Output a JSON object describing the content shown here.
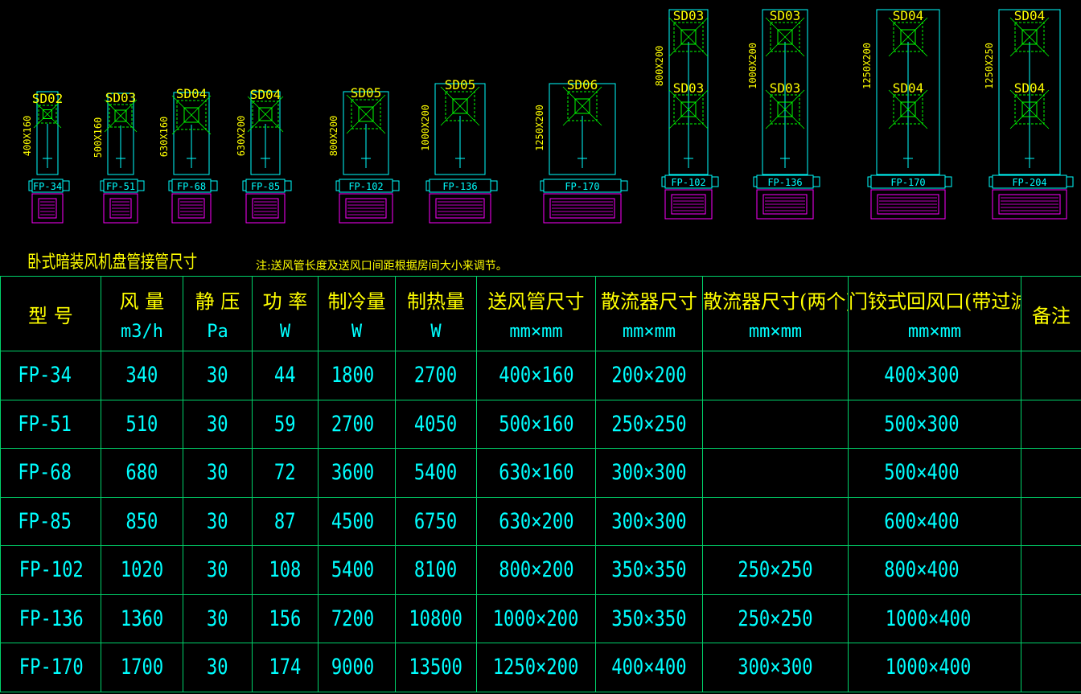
{
  "drawing": {
    "colors": {
      "outline": "#00ffff",
      "diffuser": "#00ff00",
      "grille": "#ff00ff",
      "label": "#ffff00"
    },
    "units": [
      {
        "model": "FP-34",
        "duct": "400X160",
        "diffusers": [
          "SD02"
        ]
      },
      {
        "model": "FP-51",
        "duct": "500X160",
        "diffusers": [
          "SD03"
        ]
      },
      {
        "model": "FP-68",
        "duct": "630X160",
        "diffusers": [
          "SD04"
        ]
      },
      {
        "model": "FP-85",
        "duct": "630X200",
        "diffusers": [
          "SD04"
        ]
      },
      {
        "model": "FP-102",
        "duct": "800X200",
        "diffusers": [
          "SD05"
        ]
      },
      {
        "model": "FP-136",
        "duct": "1000X200",
        "diffusers": [
          "SD05"
        ]
      },
      {
        "model": "FP-170",
        "duct": "1250X200",
        "diffusers": [
          "SD06"
        ]
      },
      {
        "model": "FP-102",
        "duct": "800X200",
        "diffusers": [
          "SD03",
          "SD03"
        ]
      },
      {
        "model": "FP-136",
        "duct": "1000X200",
        "diffusers": [
          "SD03",
          "SD03"
        ]
      },
      {
        "model": "FP-170",
        "duct": "1250X200",
        "diffusers": [
          "SD04",
          "SD04"
        ]
      },
      {
        "model": "FP-204",
        "duct": "1250X250",
        "diffusers": [
          "SD04",
          "SD04"
        ]
      }
    ]
  },
  "title": "卧式暗装风机盘管接管尺寸",
  "note": "注:送风管长度及送风口间距根据房间大小来调节。",
  "table": {
    "headers": [
      {
        "label": "型  号",
        "unit": ""
      },
      {
        "label": "风 量",
        "unit": "m3/h"
      },
      {
        "label": "静 压",
        "unit": "Pa"
      },
      {
        "label": "功 率",
        "unit": "W"
      },
      {
        "label": "制冷量",
        "unit": "W"
      },
      {
        "label": "制热量",
        "unit": "W"
      },
      {
        "label": "送风管尺寸",
        "unit": "mm×mm"
      },
      {
        "label": "散流器尺寸",
        "unit": "mm×mm"
      },
      {
        "label": "散流器尺寸(两个)",
        "unit": "mm×mm"
      },
      {
        "label": "门铰式回风口(带过滤网)",
        "unit": "mm×mm"
      },
      {
        "label": "备注",
        "unit": ""
      }
    ],
    "rows": [
      [
        "FP-34",
        "340",
        "30",
        "44",
        "1800",
        "2700",
        "400×160",
        "200×200",
        "",
        "400×300",
        ""
      ],
      [
        "FP-51",
        "510",
        "30",
        "59",
        "2700",
        "4050",
        "500×160",
        "250×250",
        "",
        "500×300",
        ""
      ],
      [
        "FP-68",
        "680",
        "30",
        "72",
        "3600",
        "5400",
        "630×160",
        "300×300",
        "",
        "500×400",
        ""
      ],
      [
        "FP-85",
        "850",
        "30",
        "87",
        "4500",
        "6750",
        "630×200",
        "300×300",
        "",
        "600×400",
        ""
      ],
      [
        "FP-102",
        "1020",
        "30",
        "108",
        "5400",
        "8100",
        "800×200",
        "350×350",
        "250×250",
        "800×400",
        ""
      ],
      [
        "FP-136",
        "1360",
        "30",
        "156",
        "7200",
        "10800",
        "1000×200",
        "350×350",
        "250×250",
        "1000×400",
        ""
      ],
      [
        "FP-170",
        "1700",
        "30",
        "174",
        "9000",
        "13500",
        "1250×200",
        "400×400",
        "300×300",
        "1000×400",
        ""
      ]
    ]
  }
}
